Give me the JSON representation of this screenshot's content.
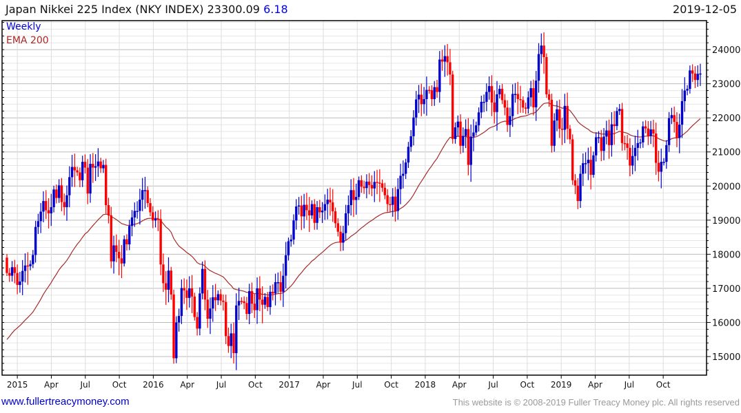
{
  "header": {
    "name": "Japan Nikkei 225 Index (NKY INDEX)",
    "last": "23300.09",
    "change": "6.18",
    "date": "2019-12-05"
  },
  "legend": {
    "frequency": "Weekly",
    "indicator": "EMA 200"
  },
  "footer": {
    "site": "www.fullertreacymoney.com",
    "copyright": "This website is © 2008-2019 Fuller Treacy Money plc. All rights reserved"
  },
  "colors": {
    "up": "#0000cc",
    "down": "#ff0000",
    "ema": "#a52a2a",
    "link": "#0000cc"
  },
  "chart_data": {
    "type": "candlestick",
    "title": "Japan Nikkei 225 Index (NKY INDEX)",
    "frequency": "weekly",
    "first_week": "2014-12-05",
    "last_week": "2019-12-06",
    "ylim": [
      14455,
      24850
    ],
    "yticks": [
      15000,
      16000,
      17000,
      18000,
      19000,
      20000,
      21000,
      22000,
      23000,
      24000
    ],
    "xtick_labels": [
      "2015",
      "Apr",
      "Jul",
      "Oct",
      "2016",
      "Apr",
      "Jul",
      "Oct",
      "2017",
      "Apr",
      "Jul",
      "Oct",
      "2018",
      "Apr",
      "Jul",
      "Oct",
      "2019",
      "Apr",
      "Jul",
      "Oct"
    ],
    "ema_period_weeks": 40,
    "ema_seed": 15500,
    "first_open": 17900,
    "closes": [
      17450,
      17370,
      17620,
      17450,
      17100,
      17200,
      17510,
      17670,
      17650,
      17710,
      17980,
      18800,
      18970,
      19250,
      19560,
      19290,
      19200,
      19380,
      19900,
      19650,
      20020,
      19530,
      19380,
      19730,
      20260,
      20560,
      20460,
      20400,
      20170,
      20710,
      20540,
      19780,
      20650,
      20540,
      20580,
      20720,
      20520,
      20620,
      19440,
      19140,
      17790,
      18260,
      18070,
      17880,
      17730,
      18440,
      18290,
      18830,
      19080,
      19270,
      19270,
      19600,
      19880,
      19880,
      19500,
      19230,
      18990,
      19040,
      19030,
      17700,
      17150,
      16960,
      17520,
      16820,
      14950,
      16000,
      16190,
      17010,
      16940,
      16720,
      17000,
      16760,
      16160,
      15820,
      16850,
      17570,
      16670,
      16110,
      16410,
      16740,
      16650,
      16830,
      16640,
      16600,
      15600,
      15310,
      15680,
      15100,
      16500,
      16630,
      16620,
      16570,
      16250,
      16920,
      16550,
      16360,
      17000,
      16670,
      16520,
      16750,
      16450,
      16900,
      16850,
      17180,
      17180,
      16900,
      17370,
      17970,
      18380,
      18430,
      18990,
      19400,
      19430,
      19110,
      19450,
      19290,
      19140,
      19470,
      18920,
      19380,
      19230,
      19280,
      19470,
      19600,
      19520,
      19260,
      18910,
      18660,
      18340,
      18620,
      19200,
      19440,
      19880,
      19590,
      19680,
      20170,
      19980,
      19940,
      20130,
      20030,
      19930,
      20120,
      20100,
      20080,
      19950,
      19730,
      19470,
      19450,
      19690,
      19270,
      19910,
      20300,
      20360,
      20690,
      21150,
      21460,
      22010,
      22540,
      22680,
      22400,
      22550,
      22820,
      22810,
      22550,
      22900,
      22760,
      23710,
      23650,
      23810,
      23630,
      23270,
      21380,
      21720,
      21890,
      21180,
      21470,
      21670,
      20620,
      21450,
      21570,
      21780,
      22160,
      22470,
      22470,
      22760,
      22930,
      22450,
      22170,
      22690,
      22850,
      22520,
      22300,
      21790,
      22050,
      22700,
      22700,
      22550,
      22520,
      22300,
      22270,
      22600,
      22870,
      22310,
      23090,
      23870,
      24120,
      23780,
      22690,
      22530,
      21180,
      21920,
      22250,
      21680,
      21650,
      22350,
      21680,
      21370,
      20170,
      20014,
      19560,
      20360,
      20670,
      20670,
      20770,
      20330,
      20900,
      21430,
      21430,
      21030,
      21450,
      21630,
      21200,
      21810,
      21760,
      22200,
      22260,
      21260,
      21250,
      21120,
      20600,
      20880,
      21120,
      21260,
      21280,
      21750,
      21690,
      21470,
      21660,
      21540,
      20680,
      20420,
      20710,
      20710,
      21200,
      21990,
      22080,
      21880,
      21410,
      21800,
      22490,
      22800,
      22850,
      23390,
      23300,
      23110,
      23290,
      23300
    ]
  }
}
